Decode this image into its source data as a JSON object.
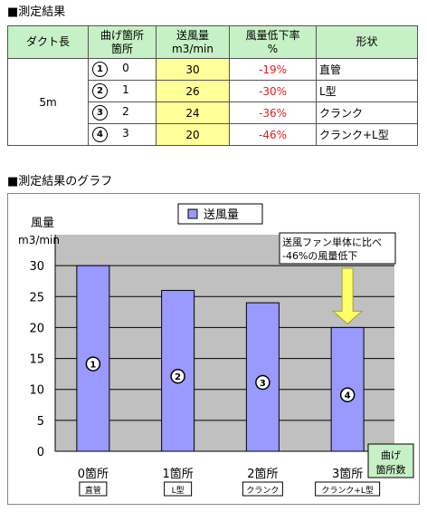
{
  "section1_title": "■測定結果",
  "section2_title": "■測定結果のグラフ",
  "table": {
    "headers": {
      "duct": "ダクト長",
      "bend_l1": "曲げ箇所",
      "bend_l2": "箇所",
      "flow_l1": "送風量",
      "flow_l2": "m3/min",
      "drop_l1": "風量低下率",
      "drop_l2": "%",
      "shape": "形状"
    },
    "duct_length": "5m",
    "rows": [
      {
        "mark": "1",
        "bends": "0",
        "flow": "30",
        "drop": "-19%",
        "shape": "直管"
      },
      {
        "mark": "2",
        "bends": "1",
        "flow": "26",
        "drop": "-30%",
        "shape": "L型"
      },
      {
        "mark": "3",
        "bends": "2",
        "flow": "24",
        "drop": "-36%",
        "shape": "クランク"
      },
      {
        "mark": "4",
        "bends": "3",
        "flow": "20",
        "drop": "-46%",
        "shape": "クランク+L型"
      }
    ]
  },
  "colors": {
    "header_bg": "#c6f0c6",
    "flow_bg": "#ffff99",
    "drop_text": "#e0201a",
    "bar": "#9999ff",
    "plot_bg": "#c0c0c0",
    "arrow": "#ffff66"
  },
  "chart_data": {
    "type": "bar",
    "ylabel_l1": "風量",
    "ylabel_l2": "m3/min",
    "xlabel_l1": "曲げ",
    "xlabel_l2": "箇所数",
    "ylim": [
      0,
      35
    ],
    "yticks": [
      0,
      5,
      10,
      15,
      20,
      25,
      30
    ],
    "categories": [
      "0箇所",
      "1箇所",
      "2箇所",
      "3箇所"
    ],
    "sublabels": [
      "直管",
      "L型",
      "クランク",
      "クランク+L型"
    ],
    "bar_marks": [
      "1",
      "2",
      "3",
      "4"
    ],
    "series": [
      {
        "name": "送風量",
        "values": [
          30,
          26,
          24,
          20
        ]
      }
    ],
    "legend": "top-center",
    "grid": true,
    "annotation": {
      "line1": "送風ファン単体に比べ",
      "line2": "-46%の風量低下",
      "target_index": 3
    }
  }
}
